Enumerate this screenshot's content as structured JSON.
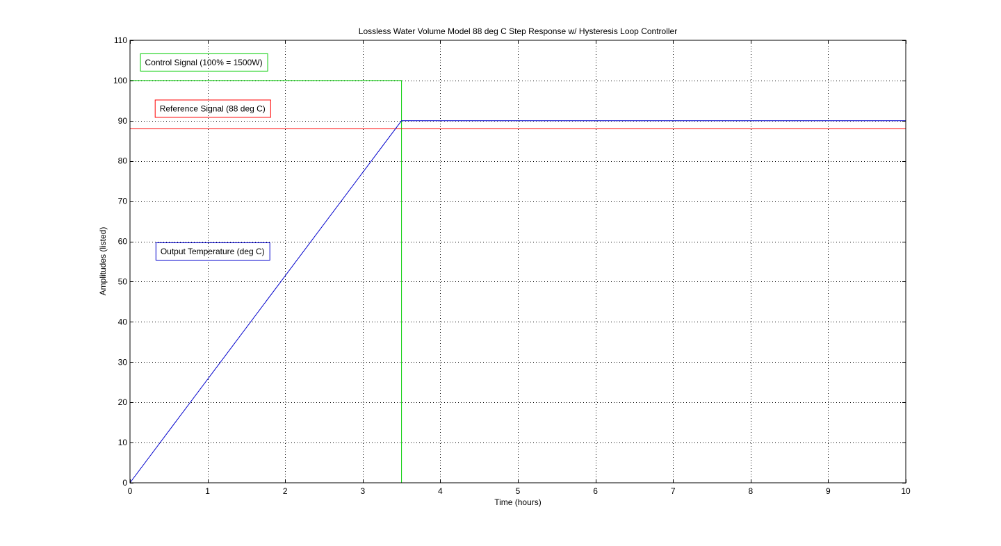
{
  "chart_data": {
    "type": "line",
    "title": "Lossless Water Volume Model 88 deg C Step Response w/ Hysteresis Loop Controller",
    "xlabel": "Time (hours)",
    "ylabel": "Amplitudes (listed)",
    "xlim": [
      0,
      10
    ],
    "ylim": [
      0,
      110
    ],
    "xticks": [
      0,
      1,
      2,
      3,
      4,
      5,
      6,
      7,
      8,
      9,
      10
    ],
    "yticks": [
      0,
      10,
      20,
      30,
      40,
      50,
      60,
      70,
      80,
      90,
      100,
      110
    ],
    "grid": true,
    "series": [
      {
        "name": "Control Signal (100% = 1500W)",
        "color": "#00cc00",
        "points": [
          [
            0,
            100
          ],
          [
            3.5,
            100
          ],
          [
            3.5,
            0
          ],
          [
            10,
            0
          ]
        ]
      },
      {
        "name": "Reference Signal (88 deg C)",
        "color": "#ff0000",
        "points": [
          [
            0,
            88
          ],
          [
            10,
            88
          ]
        ]
      },
      {
        "name": "Output Temperature (deg C)",
        "color": "#0000cc",
        "points": [
          [
            0,
            0
          ],
          [
            3.5,
            90
          ],
          [
            10,
            90
          ]
        ]
      }
    ],
    "annotations": [
      {
        "text": "Control Signal (100% = 1500W)",
        "color": "#00cc00",
        "x": 0.13,
        "y": 104.5
      },
      {
        "text": "Reference Signal (88 deg C)",
        "color": "#ff0000",
        "x": 0.32,
        "y": 93
      },
      {
        "text": "Output Temperature (deg C)",
        "color": "#0000cc",
        "x": 0.33,
        "y": 57.5
      }
    ]
  }
}
